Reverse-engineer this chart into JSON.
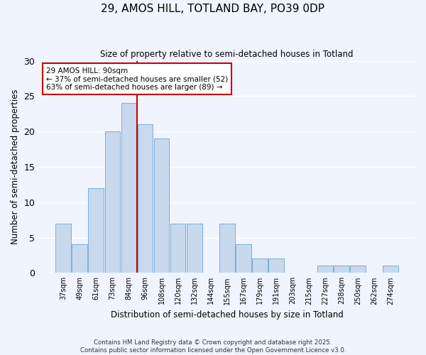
{
  "title": "29, AMOS HILL, TOTLAND BAY, PO39 0DP",
  "subtitle": "Size of property relative to semi-detached houses in Totland",
  "xlabel": "Distribution of semi-detached houses by size in Totland",
  "ylabel": "Number of semi-detached properties",
  "bin_labels": [
    "37sqm",
    "49sqm",
    "61sqm",
    "73sqm",
    "84sqm",
    "96sqm",
    "108sqm",
    "120sqm",
    "132sqm",
    "144sqm",
    "155sqm",
    "167sqm",
    "179sqm",
    "191sqm",
    "203sqm",
    "215sqm",
    "227sqm",
    "238sqm",
    "250sqm",
    "262sqm",
    "274sqm"
  ],
  "bar_values": [
    7,
    4,
    12,
    20,
    24,
    21,
    19,
    7,
    7,
    0,
    7,
    4,
    2,
    2,
    0,
    0,
    1,
    1,
    1,
    0,
    1
  ],
  "bar_color": "#c8d9ed",
  "bar_edge_color": "#7bafd4",
  "vline_x": 4.5,
  "vline_color": "#cc0000",
  "annotation_title": "29 AMOS HILL: 90sqm",
  "annotation_line1": "← 37% of semi-detached houses are smaller (52)",
  "annotation_line2": "63% of semi-detached houses are larger (89) →",
  "annotation_box_color": "#ffffff",
  "annotation_box_edge": "#cc0000",
  "ylim": [
    0,
    30
  ],
  "yticks": [
    0,
    5,
    10,
    15,
    20,
    25,
    30
  ],
  "footer_line1": "Contains HM Land Registry data © Crown copyright and database right 2025.",
  "footer_line2": "Contains public sector information licensed under the Open Government Licence v3.0.",
  "bg_color": "#f0f4ff",
  "grid_color": "#ffffff"
}
